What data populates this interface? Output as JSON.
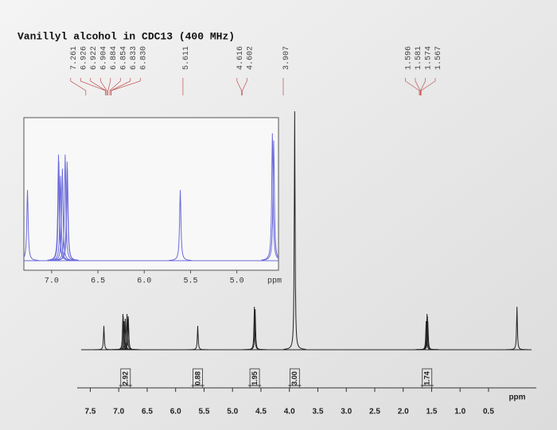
{
  "chart_data": {
    "type": "nmr",
    "title": "Vanillyl alcohol in CDC13 (400 MHz)",
    "xlabel": "ppm",
    "xlim": [
      7.8,
      -0.2
    ],
    "xticks": [
      7.5,
      {
        "value": 7,
        "label": "7.0"
      },
      6.5,
      {
        "value": 6,
        "label": "6.0"
      },
      5.5,
      {
        "value": 5,
        "label": "5.0"
      },
      4.5,
      {
        "value": 4,
        "label": "4.0"
      },
      3.5,
      {
        "value": 3,
        "label": "3.0"
      },
      2.5,
      {
        "value": 2,
        "label": "2.0"
      },
      1.5,
      {
        "value": 1,
        "label": "1.0"
      },
      0.5
    ],
    "ylim": [
      0,
      100
    ],
    "color": "#222222",
    "peaks": {
      "x": [
        7.261,
        6.926,
        6.922,
        6.904,
        6.884,
        6.854,
        6.833,
        6.83,
        5.611,
        4.616,
        4.602,
        3.907,
        1.596,
        1.581,
        1.574,
        1.567,
        0
      ],
      "y": [
        10,
        15,
        14,
        12,
        13,
        15,
        14,
        13,
        10,
        18,
        17,
        100,
        12,
        15,
        14,
        12,
        18
      ],
      "x_labels": [
        "7.261",
        "6.926",
        "6.922",
        "6.904",
        "6.884",
        "6.854",
        "6.833",
        "6.830",
        "5.611",
        "4.616",
        "4.602",
        "3.907",
        "1.596",
        "1.581",
        "1.574",
        "1.567",
        null
      ]
    },
    "integrals": {
      "x": [
        6.88,
        5.61,
        4.61,
        3.907,
        1.58
      ],
      "values": [
        2.92,
        0.88,
        1.95,
        3,
        1.74
      ],
      "value_labels": [
        "2.92",
        "0.88",
        "1.95",
        "3.00",
        "1.74"
      ]
    },
    "inset": {
      "xlabel": "ppm",
      "xlim": [
        7.3,
        4.55
      ],
      "xticks": [
        {
          "value": 7,
          "label": "7.0"
        },
        6.5,
        {
          "value": 6,
          "label": "6.0"
        },
        5.5,
        {
          "value": 5,
          "label": "5.0"
        }
      ],
      "ylim": [
        0,
        20
      ],
      "color": "#6b6bdc"
    }
  }
}
